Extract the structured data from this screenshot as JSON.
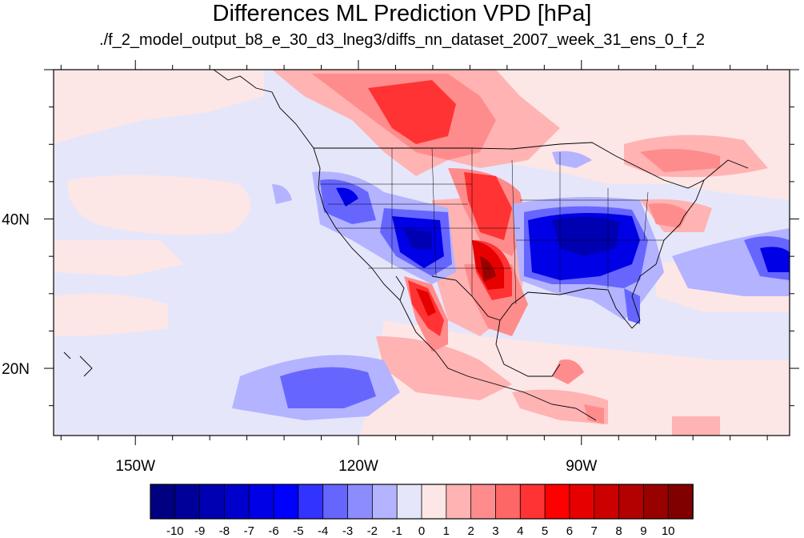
{
  "title": "Differences ML Prediction VPD [hPa]",
  "subtitle": "./f_2_model_output_b8_e_30_d3_lneg3/diffs_nn_dataset_2007_week_31_ens_0_f_2",
  "map": {
    "lon_range": [
      -161,
      -62
    ],
    "lat_range": [
      11,
      60
    ],
    "x_ticks": [
      {
        "lon": -150,
        "label": "150W"
      },
      {
        "lon": -120,
        "label": "120W"
      },
      {
        "lon": -90,
        "label": "90W"
      }
    ],
    "y_ticks": [
      {
        "lat": 20,
        "label": "20N"
      },
      {
        "lat": 40,
        "label": "40N"
      }
    ]
  },
  "colorbar": {
    "levels": [
      "-10",
      "-9",
      "-8",
      "-7",
      "-6",
      "-5",
      "-4",
      "-3",
      "-2",
      "-1",
      "0",
      "1",
      "2",
      "3",
      "4",
      "5",
      "6",
      "7",
      "8",
      "9",
      "10"
    ],
    "colors": [
      "#000080",
      "#000099",
      "#0000b3",
      "#0000cc",
      "#0000e6",
      "#0000ff",
      "#3333ff",
      "#6666ff",
      "#8c8cff",
      "#b3b3ff",
      "#e6e6fa",
      "#fde6e6",
      "#ffb3b3",
      "#ff8c8c",
      "#ff6666",
      "#ff3333",
      "#ff0000",
      "#e60000",
      "#cc0000",
      "#b30000",
      "#990000",
      "#800000"
    ]
  }
}
